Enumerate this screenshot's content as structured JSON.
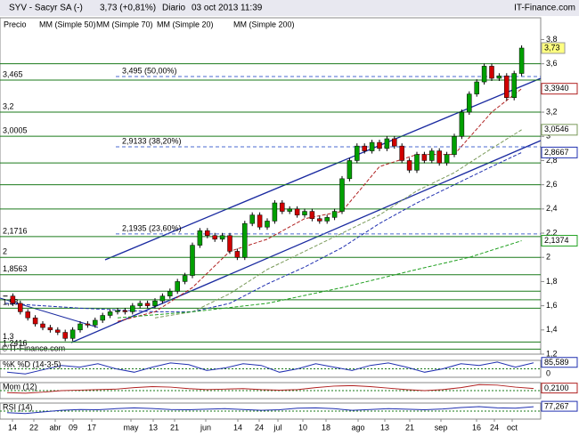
{
  "chart_data": {
    "type": "candlestick",
    "title": "SYV - Sacyr SA (-)",
    "quote": "3,73 (+0,81%)",
    "period": "Diario",
    "timestamp": "03 oct 2013 11:39",
    "brand": "IT-Finance.com",
    "watermark": "© IT-Finance.com",
    "price_name": "Precio",
    "last_label": "3,73",
    "up_color": "#00a000",
    "down_color": "#d00000",
    "ylim": [
      1.2,
      3.98
    ],
    "yticks": [
      {
        "value": 3.8,
        "label": "3,8"
      },
      {
        "value": 3.6,
        "label": "3,6"
      },
      {
        "value": 3.4,
        "label": "3,4"
      },
      {
        "value": 3.2,
        "label": "3,2"
      },
      {
        "value": 3,
        "label": "3"
      },
      {
        "value": 2.8,
        "label": "2,8"
      },
      {
        "value": 2.6,
        "label": "2,6"
      },
      {
        "value": 2.4,
        "label": "2,4"
      },
      {
        "value": 2.2,
        "label": "2,2"
      },
      {
        "value": 2,
        "label": "2"
      },
      {
        "value": 1.8,
        "label": "1,8"
      },
      {
        "value": 1.6,
        "label": "1,6"
      },
      {
        "value": 1.4,
        "label": "1,4"
      },
      {
        "value": 1.2,
        "label": "1,2"
      }
    ],
    "x_labels": [
      "14",
      "22",
      "abr",
      "09",
      "17",
      "may",
      "13",
      "21",
      "jun",
      "14",
      "24",
      "jul",
      "10",
      "18",
      "ago",
      "13",
      "21",
      "sep",
      "16",
      "24",
      "oct"
    ],
    "values": [
      1.68,
      1.62,
      1.55,
      1.5,
      1.45,
      1.42,
      1.4,
      1.38,
      1.33,
      1.4,
      1.45,
      1.44,
      1.48,
      1.52,
      1.55,
      1.56,
      1.55,
      1.6,
      1.62,
      1.6,
      1.64,
      1.68,
      1.72,
      1.8,
      1.85,
      2.1,
      2.22,
      2.18,
      2.15,
      2.18,
      2.05,
      2.0,
      2.28,
      2.35,
      2.25,
      2.3,
      2.45,
      2.38,
      2.4,
      2.35,
      2.38,
      2.32,
      2.3,
      2.33,
      2.38,
      2.65,
      2.8,
      2.92,
      2.88,
      2.95,
      2.9,
      2.98,
      2.92,
      2.8,
      2.72,
      2.85,
      2.8,
      2.88,
      2.78,
      2.85,
      3.0,
      3.2,
      3.35,
      3.45,
      3.58,
      3.48,
      3.5,
      3.32,
      3.52,
      3.73
    ],
    "moving_averages": [
      {
        "name": "MM (Simple 50)",
        "color": "#7a9a5a",
        "last_label": "3,0546",
        "x": [
          20,
          25,
          30,
          35,
          40,
          45,
          50,
          55,
          60,
          65,
          69
        ],
        "values": [
          1.5,
          1.55,
          1.7,
          1.9,
          2.05,
          2.2,
          2.35,
          2.55,
          2.7,
          2.9,
          3.0546
        ]
      },
      {
        "name": "MM (Simple 70)",
        "color": "#2030b0",
        "last_label": "2,8667",
        "x": [
          0,
          10,
          20,
          25,
          30,
          35,
          40,
          45,
          50,
          55,
          60,
          65,
          69
        ],
        "values": [
          1.62,
          1.58,
          1.55,
          1.55,
          1.62,
          1.78,
          1.92,
          2.08,
          2.28,
          2.45,
          2.6,
          2.75,
          2.8667
        ]
      },
      {
        "name": "MM (Simple 20)",
        "color": "#b02020",
        "last_label": "3,3940",
        "x": [
          15,
          20,
          25,
          30,
          35,
          40,
          45,
          50,
          55,
          60,
          65,
          69
        ],
        "values": [
          1.47,
          1.55,
          1.75,
          2.05,
          2.15,
          2.32,
          2.38,
          2.75,
          2.85,
          2.85,
          3.2,
          3.394
        ]
      },
      {
        "name": "MM (Simple 200)",
        "color": "#20a020",
        "last_label": "2,1374",
        "x": [
          15,
          25,
          35,
          45,
          55,
          62,
          69
        ],
        "values": [
          1.5,
          1.55,
          1.62,
          1.75,
          1.9,
          2.0,
          2.1374
        ]
      }
    ],
    "levels": [
      {
        "value": 3.465,
        "label": "3,465"
      },
      {
        "value": 3.2,
        "label": "3,2"
      },
      {
        "value": 3.0005,
        "label": "3,0005"
      },
      {
        "value": 2.1716,
        "label": "2,1716"
      },
      {
        "value": 2,
        "label": "2"
      },
      {
        "value": 1.8563,
        "label": "1,8563"
      },
      {
        "value": 1.58,
        "label": "1,58"
      },
      {
        "value": 1.3,
        "label": "1,3"
      },
      {
        "value": 1.2416,
        "label": "1,2416"
      }
    ],
    "extra_levels": [
      3.6,
      2.78,
      2.6,
      2.4,
      1.72,
      1.65
    ],
    "fibonacci": [
      {
        "value": 3.495,
        "label": "3,495 (50,00%)"
      },
      {
        "value": 2.9133,
        "label": "2,9133 (38,20%)"
      },
      {
        "value": 2.1935,
        "label": "2,1935 (23,60%)"
      }
    ],
    "indicators": [
      {
        "name": "%K %D (14-3-5)",
        "color": "#2030b0",
        "ylim": [
          0,
          100
        ],
        "yticks": [
          0
        ],
        "last_label": "85,589",
        "values": [
          30,
          20,
          45,
          70,
          60,
          80,
          50,
          30,
          60,
          85,
          75,
          40,
          55,
          80,
          70,
          30,
          50,
          80,
          60,
          40,
          70,
          85,
          60,
          30,
          50,
          80,
          70,
          90,
          60,
          85.589
        ]
      },
      {
        "name": "Mom (12)",
        "color": "#b02020",
        "ylim": [
          -0.8,
          0.8
        ],
        "last_label": "0,2100",
        "values": [
          -0.2,
          -0.25,
          -0.15,
          0,
          0.05,
          0.1,
          0.15,
          0.3,
          0.4,
          0.35,
          0.2,
          0.1,
          0.15,
          0.2,
          0.1,
          0.05,
          0.1,
          0.3,
          0.45,
          0.5,
          0.4,
          0.25,
          0.1,
          0,
          0.1,
          0.3,
          0.6,
          0.55,
          0.35,
          0.21
        ]
      },
      {
        "name": "RSI (14)",
        "color": "#2030b0",
        "ylim": [
          0,
          100
        ],
        "last_label": "77,267",
        "values": [
          40,
          35,
          45,
          55,
          60,
          58,
          65,
          70,
          66,
          60,
          58,
          62,
          65,
          60,
          55,
          58,
          68,
          70,
          65,
          55,
          60,
          65,
          62,
          58,
          63,
          72,
          78,
          70,
          68,
          77.267
        ]
      }
    ]
  }
}
